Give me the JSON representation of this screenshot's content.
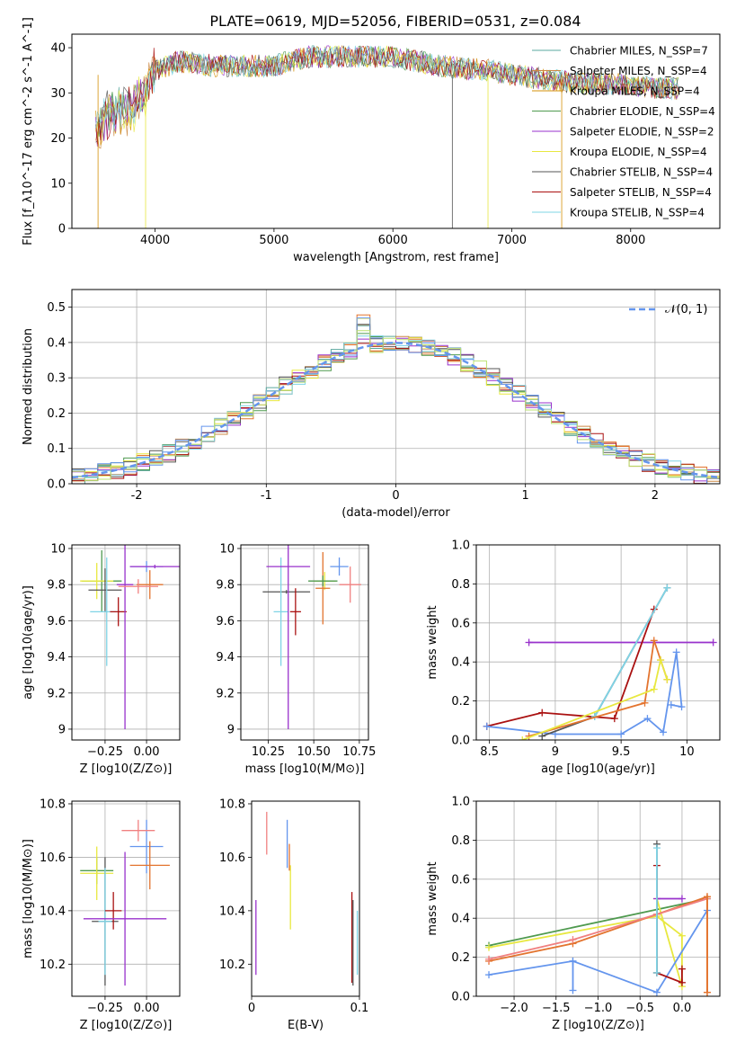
{
  "figure": {
    "title": "PLATE=0619, MJD=52056, FIBERID=0531, z=0.084"
  },
  "chart_data": [
    {
      "id": "spectrum",
      "type": "line",
      "xlabel": "wavelength [Angstrom, rest frame]",
      "ylabel": "Flux [f_λ10^-17 erg cm^-2 s^-1 A^-1]",
      "xlim": [
        3300,
        8750
      ],
      "ylim": [
        0,
        43
      ],
      "xticks": [
        4000,
        5000,
        6000,
        7000,
        8000
      ],
      "yticks": [
        0,
        10,
        20,
        30,
        40
      ],
      "grid": false,
      "legend_position": "right",
      "legend": [
        {
          "label": "Chabrier MILES, N_SSP=7",
          "color": "#5aa89f"
        },
        {
          "label": "Salpeter MILES, N_SSP=4",
          "color": "#cc8844"
        },
        {
          "label": "Kroupa MILES, N_SSP=4",
          "color": "#d4900a"
        },
        {
          "label": "Chabrier ELODIE, N_SSP=4",
          "color": "#4f9a4f"
        },
        {
          "label": "Salpeter ELODIE, N_SSP=2",
          "color": "#9932cc"
        },
        {
          "label": "Kroupa ELODIE, N_SSP=4",
          "color": "#e8e840"
        },
        {
          "label": "Chabrier STELIB, N_SSP=4",
          "color": "#555555"
        },
        {
          "label": "Salpeter STELIB, N_SSP=4",
          "color": "#aa1111"
        },
        {
          "label": "Kroupa STELIB, N_SSP=4",
          "color": "#7fd4e6"
        }
      ],
      "continuum": {
        "x": [
          3500,
          3600,
          3700,
          3800,
          3900,
          4000,
          4200,
          4500,
          4800,
          5000,
          5300,
          5600,
          6000,
          6400,
          6800,
          7000,
          7300,
          7600,
          8000,
          8200,
          8400
        ],
        "y": [
          22,
          25,
          26,
          27,
          29,
          35,
          37,
          36,
          36,
          36,
          38,
          38,
          38,
          36,
          35,
          34,
          33,
          32,
          32,
          31,
          31
        ]
      }
    },
    {
      "id": "residuals",
      "type": "line",
      "xlabel": "(data-model)/error",
      "ylabel": "Normed distribution",
      "xlim": [
        -2.5,
        2.5
      ],
      "ylim": [
        0,
        0.55
      ],
      "xticks": [
        -2,
        -1,
        0,
        1,
        2
      ],
      "yticks": [
        0.0,
        0.1,
        0.2,
        0.3,
        0.4,
        0.5
      ],
      "grid": true,
      "legend_position": "upper right",
      "legend": [
        {
          "label": "𝒩(0, 1)",
          "color": "#6495ed",
          "style": "dashed"
        }
      ]
    },
    {
      "id": "age-vs-z",
      "type": "scatter",
      "xlabel": "Z [log10(Z/Z⊙)]",
      "ylabel": "age  [log10(age/yr)]",
      "xlim": [
        -0.45,
        0.2
      ],
      "ylim": [
        8.94,
        10.02
      ],
      "xticks": [
        -0.25,
        0.0
      ],
      "xtick_labels": [
        "−0.25",
        "0.00"
      ],
      "yticks": [
        9.0,
        9.2,
        9.4,
        9.6,
        9.8,
        10.0
      ],
      "grid": true,
      "points": [
        {
          "x": -0.27,
          "y": 9.82,
          "xerr": 0.12,
          "yerr": 0.17,
          "color": "#4f9a4f"
        },
        {
          "x": -0.3,
          "y": 9.82,
          "xerr": 0.1,
          "yerr": 0.1,
          "color": "#e8e840"
        },
        {
          "x": -0.25,
          "y": 9.77,
          "xerr": 0.1,
          "yerr": 0.12,
          "color": "#555555"
        },
        {
          "x": -0.24,
          "y": 9.65,
          "xerr": 0.1,
          "yerr": 0.3,
          "color": "#7fd4e6"
        },
        {
          "x": -0.17,
          "y": 9.65,
          "xerr": 0.05,
          "yerr": 0.08,
          "color": "#aa1111"
        },
        {
          "x": -0.13,
          "y": 9.8,
          "xerr": 0.05,
          "yerr": 0.8,
          "color": "#9932cc"
        },
        {
          "x": 0.0,
          "y": 9.9,
          "xerr": 0.1,
          "yerr": 0.03,
          "color": "#6495ed"
        },
        {
          "x": 0.02,
          "y": 9.8,
          "xerr": 0.08,
          "yerr": 0.08,
          "color": "#e3742f"
        },
        {
          "x": -0.05,
          "y": 9.79,
          "xerr": 0.12,
          "yerr": 0.04,
          "color": "#f08080"
        },
        {
          "x": 0.05,
          "y": 9.9,
          "xerr": 0.15,
          "yerr": 0.01,
          "color": "#9932cc"
        }
      ]
    },
    {
      "id": "age-vs-mass",
      "type": "scatter",
      "xlabel": "mass [log10(M/M⊙)]",
      "ylabel": "",
      "xlim": [
        10.1,
        10.8
      ],
      "ylim": [
        8.94,
        10.02
      ],
      "xticks": [
        10.25,
        10.5,
        10.75
      ],
      "xtick_labels": [
        "10.25",
        "10.50",
        "10.75"
      ],
      "yticks": [
        9.0,
        9.2,
        9.4,
        9.6,
        9.8,
        10.0
      ],
      "grid": true,
      "points": [
        {
          "x": 10.35,
          "y": 9.76,
          "xerr": 0.13,
          "yerr": 0.01,
          "color": "#555555"
        },
        {
          "x": 10.32,
          "y": 9.65,
          "xerr": 0.04,
          "yerr": 0.3,
          "color": "#7fd4e6"
        },
        {
          "x": 10.4,
          "y": 9.65,
          "xerr": 0.03,
          "yerr": 0.13,
          "color": "#aa1111"
        },
        {
          "x": 10.36,
          "y": 9.9,
          "xerr": 0.12,
          "yerr": 0.9,
          "color": "#9932cc"
        },
        {
          "x": 10.56,
          "y": 9.82,
          "xerr": 0.06,
          "yerr": 0.05,
          "color": "#e8e840"
        },
        {
          "x": 10.55,
          "y": 9.78,
          "xerr": 0.04,
          "yerr": 0.2,
          "color": "#e3742f"
        },
        {
          "x": 10.64,
          "y": 9.9,
          "xerr": 0.05,
          "yerr": 0.05,
          "color": "#6495ed"
        },
        {
          "x": 10.7,
          "y": 9.8,
          "xerr": 0.06,
          "yerr": 0.1,
          "color": "#f08080"
        },
        {
          "x": 10.55,
          "y": 9.82,
          "xerr": 0.08,
          "yerr": 0.03,
          "color": "#4f9a4f"
        }
      ]
    },
    {
      "id": "massweight-vs-age",
      "type": "line",
      "xlabel": "age  [log10(age/yr)]",
      "ylabel": "mass weight",
      "xlim": [
        8.4,
        10.25
      ],
      "ylim": [
        0,
        1
      ],
      "xticks": [
        8.5,
        9.0,
        9.5,
        10.0
      ],
      "yticks": [
        0.0,
        0.2,
        0.4,
        0.6,
        0.8,
        1.0
      ],
      "grid": true,
      "series": [
        {
          "color": "#9932cc",
          "x": [
            8.8,
            10.2
          ],
          "y": [
            0.5,
            0.5
          ]
        },
        {
          "color": "#aa1111",
          "x": [
            8.48,
            8.9,
            9.45,
            9.75
          ],
          "y": [
            0.07,
            0.14,
            0.11,
            0.67
          ]
        },
        {
          "color": "#6495ed",
          "x": [
            8.48,
            9.0,
            9.5,
            9.7,
            9.82,
            9.92,
            9.96,
            9.88
          ],
          "y": [
            0.07,
            0.03,
            0.03,
            0.11,
            0.04,
            0.45,
            0.17,
            0.18
          ]
        },
        {
          "color": "#555555",
          "x": [
            8.9,
            9.3,
            9.85
          ],
          "y": [
            0.02,
            0.12,
            0.78
          ]
        },
        {
          "color": "#7fd4e6",
          "x": [
            9.3,
            9.85
          ],
          "y": [
            0.12,
            0.78
          ]
        },
        {
          "color": "#e3742f",
          "x": [
            8.8,
            9.68,
            9.75,
            9.8,
            9.85
          ],
          "y": [
            0.02,
            0.19,
            0.51,
            0.41,
            0.31
          ]
        },
        {
          "color": "#e8e840",
          "x": [
            8.75,
            9.75,
            9.8,
            9.85
          ],
          "y": [
            0.0,
            0.26,
            0.41,
            0.31
          ]
        }
      ]
    },
    {
      "id": "mass-vs-z",
      "type": "scatter",
      "xlabel": "Z [log10(Z/Z⊙)]",
      "ylabel": "mass [log10(M/M⊙)]",
      "xlim": [
        -0.45,
        0.2
      ],
      "ylim": [
        10.08,
        10.81
      ],
      "xticks": [
        -0.25,
        0.0
      ],
      "xtick_labels": [
        "−0.25",
        "0.00"
      ],
      "yticks": [
        10.2,
        10.4,
        10.6,
        10.8
      ],
      "grid": true,
      "points": [
        {
          "x": -0.3,
          "y": 10.55,
          "xerr": 0.1,
          "yerr": 0.05,
          "color": "#4f9a4f"
        },
        {
          "x": -0.3,
          "y": 10.54,
          "xerr": 0.1,
          "yerr": 0.1,
          "color": "#e8e840"
        },
        {
          "x": -0.25,
          "y": 10.36,
          "xerr": 0.08,
          "yerr": 0.24,
          "color": "#555555"
        },
        {
          "x": -0.25,
          "y": 10.36,
          "xerr": 0.04,
          "yerr": 0.2,
          "color": "#7fd4e6"
        },
        {
          "x": -0.2,
          "y": 10.4,
          "xerr": 0.05,
          "yerr": 0.07,
          "color": "#aa1111"
        },
        {
          "x": -0.13,
          "y": 10.37,
          "xerr": 0.25,
          "yerr": 0.25,
          "color": "#9932cc"
        },
        {
          "x": 0.0,
          "y": 10.64,
          "xerr": 0.1,
          "yerr": 0.1,
          "color": "#6495ed"
        },
        {
          "x": 0.02,
          "y": 10.57,
          "xerr": 0.12,
          "yerr": 0.09,
          "color": "#e3742f"
        },
        {
          "x": -0.05,
          "y": 10.7,
          "xerr": 0.1,
          "yerr": 0.04,
          "color": "#f08080"
        }
      ]
    },
    {
      "id": "mass-vs-ebv",
      "type": "scatter",
      "xlabel": "E(B-V)",
      "ylabel": "",
      "xlim": [
        0.0,
        0.1
      ],
      "ylim": [
        10.08,
        10.81
      ],
      "xticks": [
        0.0,
        0.1
      ],
      "yticks": [
        10.2,
        10.4,
        10.6,
        10.8
      ],
      "grid": false,
      "points": [
        {
          "x": 0.004,
          "y": 10.3,
          "yerr": 0.14,
          "color": "#9932cc"
        },
        {
          "x": 0.014,
          "y": 10.69,
          "yerr": 0.08,
          "color": "#f08080"
        },
        {
          "x": 0.033,
          "y": 10.65,
          "yerr": 0.09,
          "color": "#6495ed"
        },
        {
          "x": 0.036,
          "y": 10.45,
          "yerr": 0.12,
          "color": "#e8e840"
        },
        {
          "x": 0.035,
          "y": 10.6,
          "yerr": 0.05,
          "color": "#e3742f"
        },
        {
          "x": 0.093,
          "y": 10.3,
          "yerr": 0.17,
          "color": "#aa1111"
        },
        {
          "x": 0.094,
          "y": 10.28,
          "yerr": 0.16,
          "color": "#555555"
        },
        {
          "x": 0.098,
          "y": 10.28,
          "yerr": 0.12,
          "color": "#7fd4e6"
        }
      ]
    },
    {
      "id": "massweight-vs-z",
      "type": "line",
      "xlabel": "Z [log10(Z/Z⊙)]",
      "ylabel": "mass weight",
      "xlim": [
        -2.45,
        0.45
      ],
      "ylim": [
        0,
        1
      ],
      "xticks": [
        -2.0,
        -1.5,
        -1.0,
        -0.5,
        0.0
      ],
      "xtick_labels": [
        "−2.0",
        "−1.5",
        "−1.0",
        "−0.5",
        "0.0"
      ],
      "yticks": [
        0.0,
        0.2,
        0.4,
        0.6,
        0.8,
        1.0
      ],
      "grid": true,
      "series": [
        {
          "color": "#4f9a4f",
          "x": [
            -2.3,
            0.3
          ],
          "y": [
            0.26,
            0.5
          ]
        },
        {
          "color": "#e8e840",
          "x": [
            -2.3,
            -0.3,
            0.0,
            0.0,
            -0.3
          ],
          "y": [
            0.25,
            0.41,
            0.31,
            0.05,
            0.5
          ]
        },
        {
          "color": "#e3742f",
          "x": [
            -2.3,
            -1.3,
            -0.3,
            0.3,
            0.3
          ],
          "y": [
            0.18,
            0.27,
            0.42,
            0.51,
            0.02
          ]
        },
        {
          "color": "#f08080",
          "x": [
            -2.3,
            -1.3,
            -0.3,
            0.3
          ],
          "y": [
            0.19,
            0.29,
            0.42,
            0.5
          ]
        },
        {
          "color": "#6495ed",
          "x": [
            -2.3,
            -1.3,
            -0.3,
            0.3
          ],
          "y": [
            0.11,
            0.18,
            0.02,
            0.44
          ]
        },
        {
          "color": "#6495ed",
          "x": [
            -1.3,
            -1.3
          ],
          "y": [
            0.18,
            0.03
          ]
        },
        {
          "color": "#9932cc",
          "x": [
            -0.3,
            0.0
          ],
          "y": [
            0.5,
            0.5
          ]
        },
        {
          "color": "#aa1111",
          "x": [
            -0.3,
            -0.3,
            0.0,
            0.0
          ],
          "y": [
            0.67,
            0.12,
            0.07,
            0.14
          ]
        },
        {
          "color": "#555555",
          "x": [
            -0.3,
            -0.3
          ],
          "y": [
            0.78,
            0.12
          ]
        },
        {
          "color": "#7fd4e6",
          "x": [
            -0.3,
            -0.3
          ],
          "y": [
            0.76,
            0.12
          ]
        },
        {
          "color": "#e3742f",
          "x": [
            0.3,
            0.3
          ],
          "y": [
            0.51,
            0.02
          ]
        }
      ]
    }
  ]
}
